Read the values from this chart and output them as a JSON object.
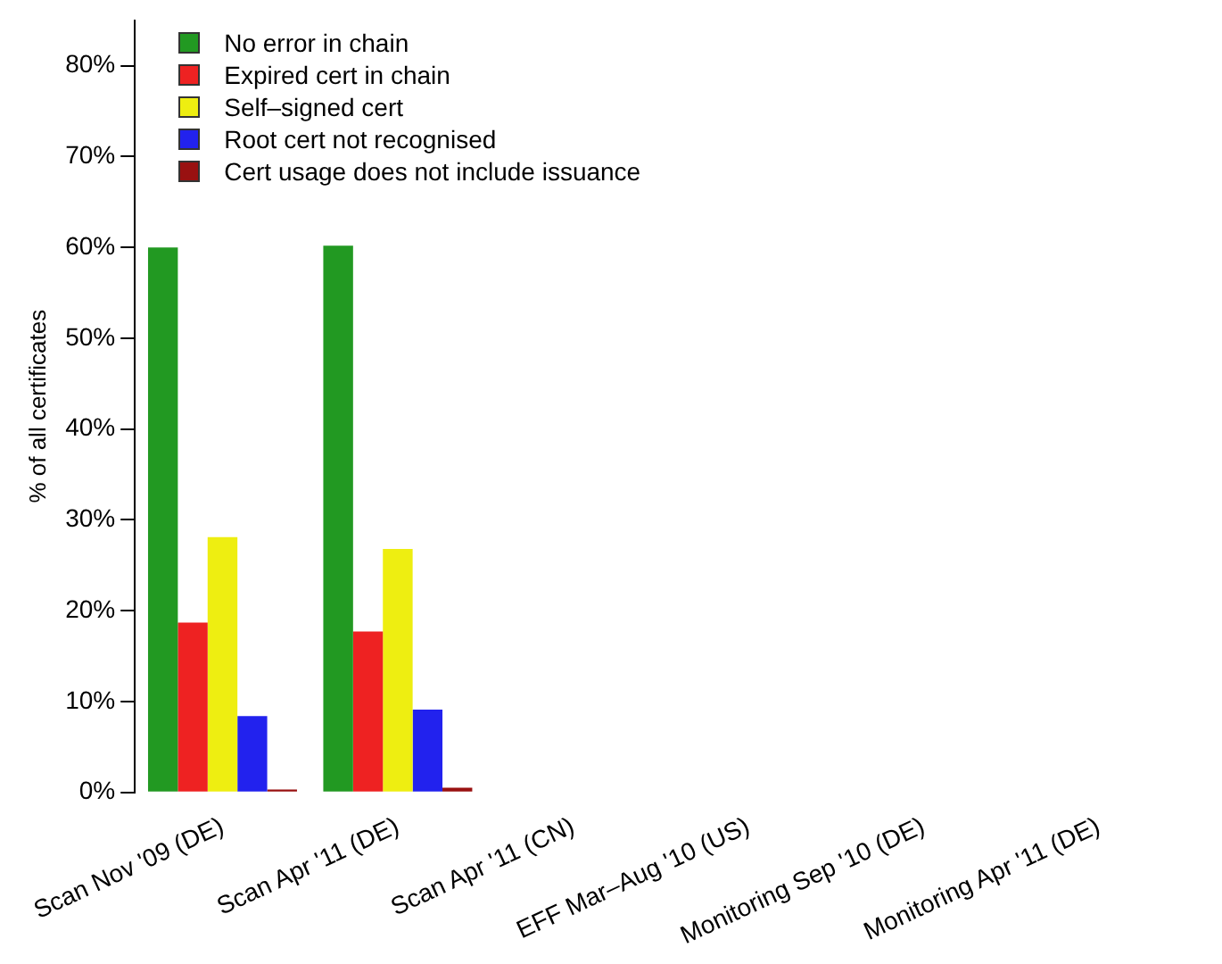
{
  "chart_data": {
    "type": "bar",
    "ylabel": "% of all certificates",
    "categories": [
      "Scan Nov '09 (DE)",
      "Scan Apr '11 (DE)",
      "Scan Apr '11 (CN)",
      "EFF Mar–Aug '10 (US)",
      "Monitoring Sep '10 (DE)",
      "Monitoring Apr '11 (DE)"
    ],
    "series": [
      {
        "name": "No error in chain",
        "color": "#229922",
        "values": [
          60.0,
          60.2,
          null,
          null,
          null,
          null
        ]
      },
      {
        "name": "Expired cert in chain",
        "color": "#ee2222",
        "values": [
          18.7,
          17.7,
          null,
          null,
          null,
          null
        ]
      },
      {
        "name": "Self–signed cert",
        "color": "#eeee11",
        "values": [
          28.1,
          26.8,
          null,
          null,
          null,
          null
        ]
      },
      {
        "name": "Root cert not recognised",
        "color": "#2222ee",
        "values": [
          8.4,
          9.1,
          null,
          null,
          null,
          null
        ]
      },
      {
        "name": "Cert usage does not include issuance",
        "color": "#991111",
        "values": [
          0.3,
          0.5,
          null,
          null,
          null,
          null
        ]
      }
    ],
    "ylim": [
      0,
      85
    ],
    "yticks": [
      {
        "value": 0,
        "label": "0%"
      },
      {
        "value": 10,
        "label": "10%"
      },
      {
        "value": 20,
        "label": "20%"
      },
      {
        "value": 30,
        "label": "30%"
      },
      {
        "value": 40,
        "label": "40%"
      },
      {
        "value": 50,
        "label": "50%"
      },
      {
        "value": 60,
        "label": "60%"
      },
      {
        "value": 70,
        "label": "70%"
      },
      {
        "value": 80,
        "label": "80%"
      }
    ],
    "grid": false,
    "legend": "top left"
  }
}
